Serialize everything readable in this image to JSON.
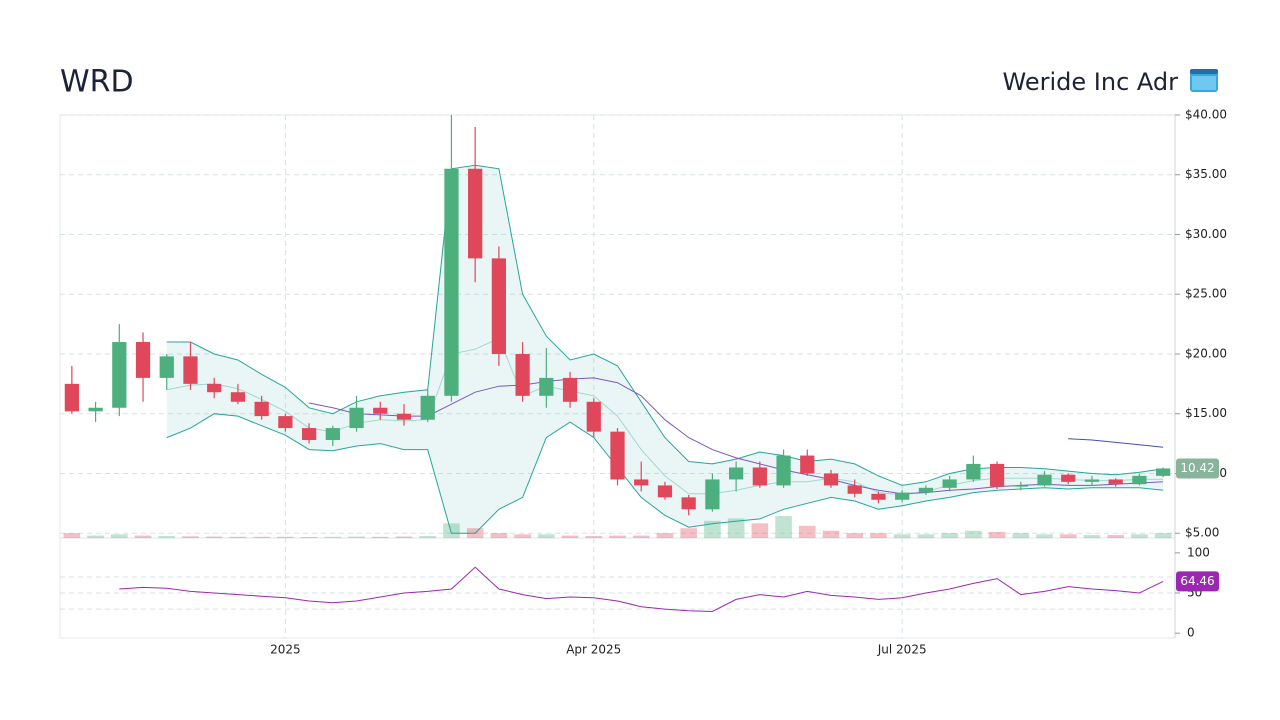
{
  "chart_data": {
    "type": "candlestick",
    "title": "WRD",
    "subtitle": "Weride Inc Adr",
    "categories": [
      null,
      null,
      null,
      null,
      null,
      null,
      null,
      null,
      null,
      "2025",
      null,
      null,
      null,
      null,
      null,
      null,
      null,
      null,
      null,
      null,
      null,
      null,
      "Apr 2025",
      null,
      null,
      null,
      null,
      null,
      null,
      null,
      null,
      null,
      null,
      null,
      null,
      "Jul 2025",
      null,
      null,
      null,
      null,
      null,
      null,
      null,
      null,
      null,
      null,
      null
    ],
    "open": [
      17.5,
      15.2,
      15.5,
      21,
      18,
      19.8,
      17.5,
      16.8,
      16,
      14.8,
      13.8,
      12.8,
      13.8,
      15.5,
      15,
      14.5,
      16.5,
      35.5,
      28,
      20,
      16.5,
      18,
      16,
      13.5,
      9.5,
      9,
      8,
      7,
      9.5,
      10.5,
      9,
      11.5,
      10,
      9,
      8.3,
      7.8,
      8.4,
      8.8,
      9.5,
      10.8,
      8.9,
      9,
      9.9,
      9.3,
      9.5,
      9.1,
      9.8
    ],
    "high": [
      19,
      16,
      22.5,
      21.8,
      20,
      21,
      18,
      17.5,
      16.5,
      15,
      14.2,
      14,
      16.5,
      16,
      15.8,
      17,
      40,
      39,
      29,
      21,
      20.5,
      18.5,
      16.3,
      13.8,
      11,
      9.3,
      8.2,
      10,
      11,
      11,
      12,
      12,
      10.3,
      9.5,
      8.5,
      8.6,
      9,
      9.8,
      11.5,
      11,
      9.3,
      10.2,
      10,
      9.8,
      9.6,
      10,
      10.5
    ],
    "low": [
      15,
      14.3,
      14.8,
      16,
      17,
      17,
      16.3,
      15.8,
      14.5,
      13.5,
      12.5,
      12.3,
      13.5,
      14.5,
      14,
      14.3,
      16,
      26,
      19,
      16,
      15.5,
      15.5,
      13,
      9,
      8.5,
      7.8,
      6.5,
      6.8,
      8.5,
      8.8,
      8.8,
      9.8,
      8.8,
      8,
      7.5,
      7.6,
      8.2,
      8.5,
      9.3,
      8.7,
      8.6,
      8.9,
      9.1,
      9,
      8.9,
      9,
      9.7
    ],
    "close": [
      15.2,
      15.5,
      21,
      18,
      19.8,
      17.5,
      16.8,
      16,
      14.8,
      13.8,
      12.8,
      13.8,
      15.5,
      15,
      14.5,
      16.5,
      35.5,
      28,
      20,
      16.5,
      18,
      16,
      13.5,
      9.5,
      9,
      8,
      7,
      9.5,
      10.5,
      9,
      11.5,
      10,
      9,
      8.3,
      7.8,
      8.4,
      8.8,
      9.5,
      10.8,
      8.9,
      9,
      9.9,
      9.3,
      9.5,
      9.1,
      9.8,
      10.42
    ],
    "volume": [
      2,
      1,
      1.5,
      1,
      0.8,
      0.7,
      0.6,
      0.5,
      0.5,
      0.5,
      0.4,
      0.5,
      0.6,
      0.5,
      0.6,
      0.8,
      6,
      4,
      2,
      1.5,
      1.5,
      1,
      0.8,
      1,
      1,
      2,
      4,
      7,
      8,
      6,
      9,
      5,
      3,
      2,
      2,
      1.5,
      1.5,
      2,
      3,
      2.5,
      2,
      1.5,
      1.5,
      1.2,
      1.2,
      1.5,
      2
    ],
    "bollinger_upper": [
      null,
      null,
      null,
      null,
      21,
      21,
      20,
      19.5,
      18.3,
      17.2,
      15.5,
      15,
      16,
      16.5,
      16.8,
      17,
      35.5,
      35.8,
      35.5,
      25,
      21.5,
      19.5,
      20,
      19,
      16,
      13,
      11,
      10.8,
      11.2,
      11.8,
      11.5,
      11,
      11.2,
      10.8,
      9.8,
      9,
      9.3,
      10,
      10.4,
      10.5,
      10.5,
      10.4,
      10.2,
      10,
      9.9,
      10.1,
      10.4
    ],
    "bollinger_middle": [
      null,
      null,
      null,
      null,
      17,
      17.4,
      17.5,
      17.1,
      16.2,
      15.2,
      13.8,
      13.5,
      14.2,
      14.5,
      14.4,
      14.5,
      20,
      20.4,
      21.3,
      16.5,
      17.3,
      16.9,
      16.5,
      14.8,
      12,
      9.8,
      8.3,
      8.3,
      8.6,
      9,
      9.3,
      9.3,
      9.6,
      9.3,
      8.4,
      8.2,
      8.5,
      9,
      9.4,
      9.6,
      9.6,
      9.6,
      9.5,
      9.4,
      9.4,
      9.5,
      9.5
    ],
    "bollinger_lower": [
      null,
      null,
      null,
      null,
      13,
      13.8,
      15,
      14.8,
      14,
      13.2,
      12,
      11.9,
      12.3,
      12.5,
      12,
      12,
      5,
      5,
      7,
      8,
      13,
      14.3,
      13,
      10.5,
      8,
      6.5,
      5.5,
      5.8,
      6,
      6.2,
      7,
      7.5,
      8,
      7.7,
      7,
      7.3,
      7.7,
      8,
      8.4,
      8.6,
      8.7,
      8.8,
      8.7,
      8.8,
      8.8,
      8.8,
      8.6
    ],
    "sma_50": [
      null,
      null,
      null,
      null,
      null,
      null,
      null,
      null,
      null,
      null,
      15.9,
      15.5,
      15,
      14.9,
      14.8,
      14.8,
      15.8,
      16.8,
      17.3,
      17.4,
      17.7,
      17.9,
      18,
      17.6,
      16.5,
      14.5,
      13,
      12,
      11.3,
      10.8,
      10.3,
      9.9,
      9.5,
      9.0,
      8.6,
      8.3,
      8.4,
      8.6,
      8.7,
      8.9,
      9,
      9.1,
      9.0,
      9.0,
      9.1,
      9.2,
      9.3
    ],
    "sma_200": [
      null,
      null,
      null,
      null,
      null,
      null,
      null,
      null,
      null,
      null,
      null,
      null,
      null,
      null,
      null,
      null,
      null,
      null,
      null,
      null,
      null,
      null,
      null,
      null,
      null,
      null,
      null,
      null,
      null,
      null,
      null,
      null,
      null,
      null,
      null,
      null,
      null,
      null,
      null,
      null,
      null,
      null,
      12.9,
      12.8,
      12.6,
      12.4,
      12.2
    ],
    "rsi": [
      null,
      null,
      55,
      57,
      56,
      52,
      50,
      48,
      46,
      44,
      40,
      38,
      40,
      45,
      50,
      52,
      55,
      82,
      55,
      48,
      43,
      45,
      44,
      40,
      33,
      30,
      28,
      27,
      42,
      48,
      45,
      52,
      47,
      45,
      42,
      44,
      50,
      55,
      62,
      68,
      48,
      52,
      58,
      55,
      53,
      50,
      64.46
    ],
    "ylim": [
      4.6,
      40
    ],
    "yticks": [
      {
        "value": 5,
        "label": "$5.00"
      },
      {
        "value": 10,
        "label": "$10.00"
      },
      {
        "value": 15,
        "label": "$15.00"
      },
      {
        "value": 20,
        "label": "$20.00"
      },
      {
        "value": 25,
        "label": "$25.00"
      },
      {
        "value": 30,
        "label": "$30.00"
      },
      {
        "value": 35,
        "label": "$35.00"
      },
      {
        "value": 40,
        "label": "$40.00"
      }
    ],
    "rsi_ylim": [
      -6,
      116
    ],
    "rsi_yticks": [
      0,
      50,
      100
    ],
    "rsi_levels": [
      30,
      70
    ],
    "colors": {
      "up": "#4caf7d",
      "down": "#e0475a",
      "band": "#26a69a",
      "band_middle": "#9fd8d0",
      "sma_50": "#7e57c2",
      "sma_200": "#3f51b5",
      "rsi": "#9c27b0",
      "price_tag": "#88b49a"
    },
    "grid": true
  }
}
